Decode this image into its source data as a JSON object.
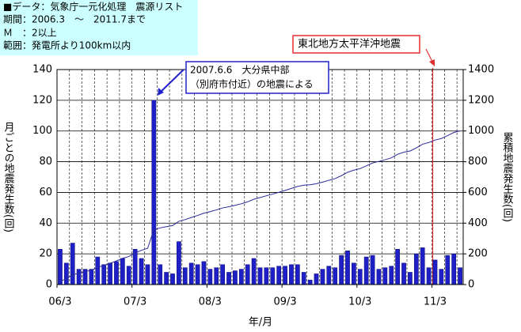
{
  "chart_data": {
    "type": "bar",
    "info_lines": [
      "■データ：気象庁一元化処理　震源リスト",
      "期間：2006.3　～　2011.7まで",
      "Ｍ　：2以上",
      "範囲：発電所より100km以内"
    ],
    "annotations": [
      "2007.6.6　大分県中部",
      "（別府市付近）の地震による",
      "東北地方太平洋沖地震"
    ],
    "x_label": "年/月",
    "y_label": "月ごとの地震発生数(回)",
    "y2_label": "累積地震発生数(回)",
    "categories": [
      "06/3",
      null,
      null,
      null,
      null,
      null,
      null,
      null,
      null,
      null,
      null,
      null,
      "07/3",
      null,
      null,
      null,
      null,
      null,
      null,
      null,
      null,
      null,
      null,
      null,
      "08/3",
      null,
      null,
      null,
      null,
      null,
      null,
      null,
      null,
      null,
      null,
      null,
      "09/3",
      null,
      null,
      null,
      null,
      null,
      null,
      null,
      null,
      null,
      null,
      null,
      "10/3",
      null,
      null,
      null,
      null,
      null,
      null,
      null,
      null,
      null,
      null,
      null,
      "11/3",
      null,
      null,
      null,
      null
    ],
    "series": [
      {
        "type": "bar",
        "color": "#1f1fc8",
        "values": [
          23,
          14,
          27,
          10,
          10,
          10,
          18,
          13,
          14,
          15,
          17,
          12,
          23,
          17,
          13,
          120,
          13,
          8,
          7,
          28,
          11,
          14,
          13,
          15,
          10,
          11,
          13,
          8,
          9,
          10,
          13,
          17,
          11,
          11,
          11,
          12,
          12,
          13,
          13,
          8,
          3,
          7,
          10,
          12,
          11,
          19,
          22,
          14,
          10,
          18,
          19,
          10,
          11,
          12,
          23,
          14,
          8,
          20,
          24,
          11,
          16,
          10,
          19,
          20,
          11
        ]
      },
      {
        "type": "line",
        "axis": "y2",
        "color": "#2a2a9a",
        "values": [
          23,
          37,
          64,
          74,
          84,
          94,
          112,
          125,
          139,
          154,
          171,
          183,
          206,
          223,
          236,
          356,
          369,
          377,
          384,
          412,
          423,
          437,
          450,
          465,
          475,
          486,
          499,
          507,
          516,
          526,
          539,
          556,
          567,
          578,
          589,
          601,
          613,
          626,
          639,
          647,
          650,
          657,
          667,
          679,
          690,
          709,
          731,
          745,
          755,
          773,
          792,
          802,
          813,
          825,
          848,
          862,
          870,
          890,
          914,
          925,
          941,
          951,
          970,
          990,
          1001
        ]
      }
    ],
    "ylim": [
      0,
      140
    ],
    "yticks": [
      0,
      20,
      40,
      60,
      80,
      100,
      120,
      140
    ],
    "y2lim": [
      0,
      1400
    ],
    "y2ticks": [
      0,
      200,
      400,
      600,
      800,
      1000,
      1200,
      1400
    ],
    "grid": true
  }
}
